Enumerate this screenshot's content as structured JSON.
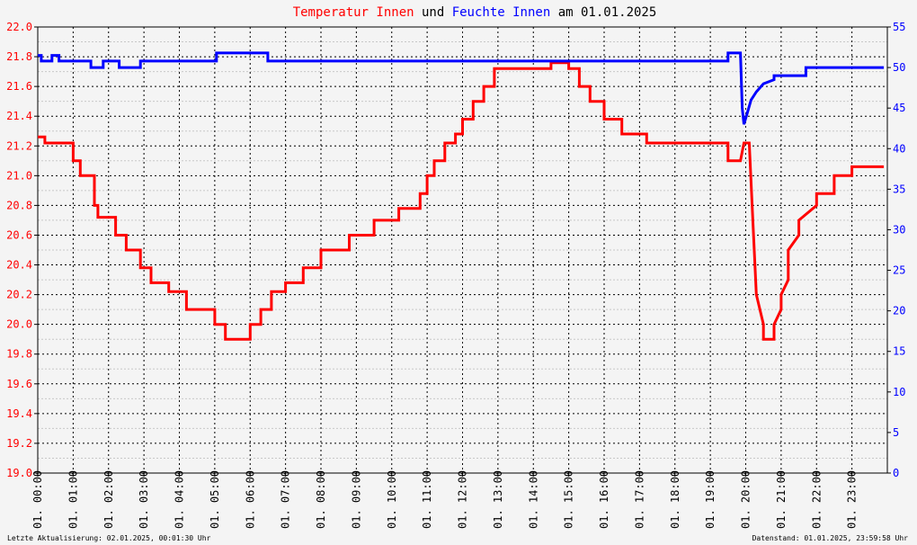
{
  "title": {
    "part1": "Temperatur Innen",
    "part2": " und ",
    "part3": "Feuchte Innen",
    "part4": " am 01.01.2025"
  },
  "footer": {
    "left": "Letzte Aktualisierung: 02.01.2025, 00:01:30 Uhr",
    "right": "Datenstand: 01.01.2025, 23:59:58 Uhr"
  },
  "colors": {
    "temperature": "#ff0000",
    "humidity": "#0000ff",
    "grid": "#000000",
    "minor_grid": "#c8c8c8",
    "background": "#f4f4f4"
  },
  "chart_data": {
    "type": "line",
    "title": "Temperatur Innen und Feuchte Innen am 01.01.2025",
    "grid": true,
    "xlim": [
      0,
      24
    ],
    "x_tick_labels": [
      "01. 00:00",
      "01. 01:00",
      "01. 02:00",
      "01. 03:00",
      "01. 04:00",
      "01. 05:00",
      "01. 06:00",
      "01. 07:00",
      "01. 08:00",
      "01. 09:00",
      "01. 10:00",
      "01. 11:00",
      "01. 12:00",
      "01. 13:00",
      "01. 14:00",
      "01. 15:00",
      "01. 16:00",
      "01. 17:00",
      "01. 18:00",
      "01. 19:00",
      "01. 20:00",
      "01. 21:00",
      "01. 22:00",
      "01. 23:00"
    ],
    "y_left": {
      "ylim": [
        19.0,
        22.0
      ],
      "ticks": [
        "19.0",
        "19.2",
        "19.4",
        "19.6",
        "19.8",
        "20.0",
        "20.2",
        "20.4",
        "20.6",
        "20.8",
        "21.0",
        "21.2",
        "21.4",
        "21.6",
        "21.8",
        "22.0"
      ],
      "color": "#ff0000"
    },
    "y_right": {
      "ylim": [
        0,
        55
      ],
      "ticks": [
        "0",
        "5",
        "10",
        "15",
        "20",
        "25",
        "30",
        "35",
        "40",
        "45",
        "50",
        "55"
      ],
      "color": "#0000ff"
    },
    "series": [
      {
        "name": "Temperatur Innen",
        "axis": "left",
        "x": [
          0.0,
          0.2,
          0.2,
          0.5,
          1.0,
          1.0,
          1.2,
          1.2,
          1.6,
          1.6,
          1.7,
          1.7,
          2.2,
          2.2,
          2.5,
          2.5,
          2.9,
          2.9,
          3.2,
          3.2,
          3.7,
          3.7,
          4.2,
          4.2,
          5.0,
          5.0,
          5.3,
          5.3,
          6.0,
          6.0,
          6.3,
          6.3,
          6.6,
          6.6,
          7.0,
          7.0,
          7.5,
          7.5,
          8.0,
          8.0,
          8.8,
          8.8,
          9.5,
          9.5,
          10.2,
          10.2,
          10.8,
          10.8,
          11.0,
          11.0,
          11.2,
          11.2,
          11.5,
          11.5,
          11.8,
          11.8,
          12.0,
          12.0,
          12.3,
          12.3,
          12.6,
          12.6,
          12.9,
          12.9,
          14.5,
          14.5,
          15.0,
          15.0,
          15.3,
          15.3,
          15.6,
          15.6,
          16.0,
          16.0,
          16.5,
          16.5,
          17.2,
          17.2,
          19.5,
          19.5,
          19.85,
          19.95,
          20.1,
          20.2,
          20.3,
          20.5,
          20.5,
          20.8,
          20.8,
          21.0,
          21.0,
          21.2,
          21.2,
          21.5,
          21.5,
          22.0,
          22.0,
          22.5,
          22.5,
          23.0,
          23.0,
          23.9
        ],
        "y": [
          21.26,
          21.26,
          21.22,
          21.22,
          21.22,
          21.1,
          21.1,
          21.0,
          21.0,
          20.8,
          20.8,
          20.72,
          20.72,
          20.6,
          20.6,
          20.5,
          20.5,
          20.38,
          20.38,
          20.28,
          20.28,
          20.22,
          20.22,
          20.1,
          20.1,
          20.0,
          20.0,
          19.9,
          19.9,
          20.0,
          20.0,
          20.1,
          20.1,
          20.22,
          20.22,
          20.28,
          20.28,
          20.38,
          20.38,
          20.5,
          20.5,
          20.6,
          20.6,
          20.7,
          20.7,
          20.78,
          20.78,
          20.88,
          20.88,
          21.0,
          21.0,
          21.1,
          21.1,
          21.22,
          21.22,
          21.28,
          21.28,
          21.38,
          21.38,
          21.5,
          21.5,
          21.6,
          21.6,
          21.72,
          21.72,
          21.76,
          21.76,
          21.72,
          21.72,
          21.6,
          21.6,
          21.5,
          21.5,
          21.38,
          21.38,
          21.28,
          21.28,
          21.22,
          21.22,
          21.1,
          21.1,
          21.22,
          21.22,
          20.7,
          20.2,
          20.0,
          19.9,
          19.9,
          20.0,
          20.1,
          20.2,
          20.3,
          20.5,
          20.6,
          20.7,
          20.8,
          20.88,
          20.88,
          21.0,
          21.0,
          21.06,
          21.06
        ]
      },
      {
        "name": "Feuchte Innen",
        "axis": "right",
        "x": [
          0.0,
          0.1,
          0.1,
          0.4,
          0.4,
          0.6,
          0.6,
          1.5,
          1.5,
          1.85,
          1.85,
          2.3,
          2.3,
          2.9,
          2.9,
          5.05,
          5.05,
          6.5,
          6.5,
          19.5,
          19.5,
          19.85,
          19.9,
          19.95,
          20.05,
          20.15,
          20.3,
          20.5,
          20.8,
          20.8,
          21.7,
          21.7,
          23.9
        ],
        "y": [
          51.5,
          51.5,
          50.8,
          50.8,
          51.5,
          51.5,
          50.8,
          50.8,
          50.0,
          50.0,
          50.8,
          50.8,
          50.0,
          50.0,
          50.8,
          50.8,
          51.8,
          51.8,
          50.8,
          50.8,
          51.8,
          51.8,
          45.0,
          43.0,
          44.5,
          46.0,
          47.0,
          48.0,
          48.5,
          49.0,
          49.0,
          50.0,
          50.0
        ]
      }
    ]
  }
}
